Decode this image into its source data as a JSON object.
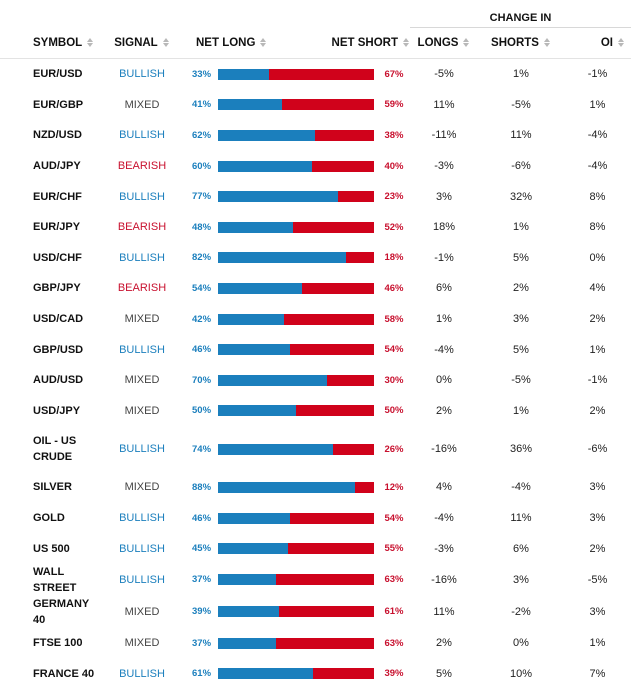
{
  "headers": {
    "symbol": "SYMBOL",
    "signal": "SIGNAL",
    "net_long": "NET LONG",
    "net_short": "NET SHORT",
    "change_in": "CHANGE IN",
    "longs": "LONGS",
    "shorts": "SHORTS",
    "oi": "OI"
  },
  "colors": {
    "long": "#1b7fbd",
    "short": "#d0021b",
    "bullish": "#1b7fbd",
    "bearish": "#c8102e",
    "mixed": "#444444"
  },
  "rows": [
    {
      "symbol": "EUR/USD",
      "signal": "BULLISH",
      "net_long": "33%",
      "net_short": "67%",
      "long_fraction": 0.33,
      "longs": "-5%",
      "shorts": "1%",
      "oi": "-1%"
    },
    {
      "symbol": "EUR/GBP",
      "signal": "MIXED",
      "net_long": "41%",
      "net_short": "59%",
      "long_fraction": 0.41,
      "longs": "11%",
      "shorts": "-5%",
      "oi": "1%"
    },
    {
      "symbol": "NZD/USD",
      "signal": "BULLISH",
      "net_long": "62%",
      "net_short": "38%",
      "long_fraction": 0.62,
      "longs": "-11%",
      "shorts": "11%",
      "oi": "-4%"
    },
    {
      "symbol": "AUD/JPY",
      "signal": "BEARISH",
      "net_long": "60%",
      "net_short": "40%",
      "long_fraction": 0.6,
      "longs": "-3%",
      "shorts": "-6%",
      "oi": "-4%"
    },
    {
      "symbol": "EUR/CHF",
      "signal": "BULLISH",
      "net_long": "77%",
      "net_short": "23%",
      "long_fraction": 0.77,
      "longs": "3%",
      "shorts": "32%",
      "oi": "8%"
    },
    {
      "symbol": "EUR/JPY",
      "signal": "BEARISH",
      "net_long": "48%",
      "net_short": "52%",
      "long_fraction": 0.48,
      "longs": "18%",
      "shorts": "1%",
      "oi": "8%"
    },
    {
      "symbol": "USD/CHF",
      "signal": "BULLISH",
      "net_long": "82%",
      "net_short": "18%",
      "long_fraction": 0.82,
      "longs": "-1%",
      "shorts": "5%",
      "oi": "0%"
    },
    {
      "symbol": "GBP/JPY",
      "signal": "BEARISH",
      "net_long": "54%",
      "net_short": "46%",
      "long_fraction": 0.54,
      "longs": "6%",
      "shorts": "2%",
      "oi": "4%"
    },
    {
      "symbol": "USD/CAD",
      "signal": "MIXED",
      "net_long": "42%",
      "net_short": "58%",
      "long_fraction": 0.42,
      "longs": "1%",
      "shorts": "3%",
      "oi": "2%"
    },
    {
      "symbol": "GBP/USD",
      "signal": "BULLISH",
      "net_long": "46%",
      "net_short": "54%",
      "long_fraction": 0.46,
      "longs": "-4%",
      "shorts": "5%",
      "oi": "1%"
    },
    {
      "symbol": "AUD/USD",
      "signal": "MIXED",
      "net_long": "70%",
      "net_short": "30%",
      "long_fraction": 0.7,
      "longs": "0%",
      "shorts": "-5%",
      "oi": "-1%"
    },
    {
      "symbol": "USD/JPY",
      "signal": "MIXED",
      "net_long": "50%",
      "net_short": "50%",
      "long_fraction": 0.5,
      "longs": "2%",
      "shorts": "1%",
      "oi": "2%"
    },
    {
      "symbol": "OIL - US CRUDE",
      "symbol_line1": "OIL - US",
      "symbol_line2": "CRUDE",
      "signal": "BULLISH",
      "net_long": "74%",
      "net_short": "26%",
      "long_fraction": 0.74,
      "longs": "-16%",
      "shorts": "36%",
      "oi": "-6%"
    },
    {
      "symbol": "SILVER",
      "signal": "MIXED",
      "net_long": "88%",
      "net_short": "12%",
      "long_fraction": 0.88,
      "longs": "4%",
      "shorts": "-4%",
      "oi": "3%"
    },
    {
      "symbol": "GOLD",
      "signal": "BULLISH",
      "net_long": "46%",
      "net_short": "54%",
      "long_fraction": 0.46,
      "longs": "-4%",
      "shorts": "11%",
      "oi": "3%"
    },
    {
      "symbol": "US 500",
      "signal": "BULLISH",
      "net_long": "45%",
      "net_short": "55%",
      "long_fraction": 0.45,
      "longs": "-3%",
      "shorts": "6%",
      "oi": "2%"
    },
    {
      "symbol": "WALL STREET",
      "signal": "BULLISH",
      "net_long": "37%",
      "net_short": "63%",
      "long_fraction": 0.37,
      "longs": "-16%",
      "shorts": "3%",
      "oi": "-5%"
    },
    {
      "symbol": "GERMANY 40",
      "signal": "MIXED",
      "net_long": "39%",
      "net_short": "61%",
      "long_fraction": 0.39,
      "longs": "11%",
      "shorts": "-2%",
      "oi": "3%"
    },
    {
      "symbol": "FTSE 100",
      "signal": "MIXED",
      "net_long": "37%",
      "net_short": "63%",
      "long_fraction": 0.37,
      "longs": "2%",
      "shorts": "0%",
      "oi": "1%"
    },
    {
      "symbol": "FRANCE 40",
      "signal": "BULLISH",
      "net_long": "61%",
      "net_short": "39%",
      "long_fraction": 0.61,
      "longs": "5%",
      "shorts": "10%",
      "oi": "7%"
    }
  ]
}
